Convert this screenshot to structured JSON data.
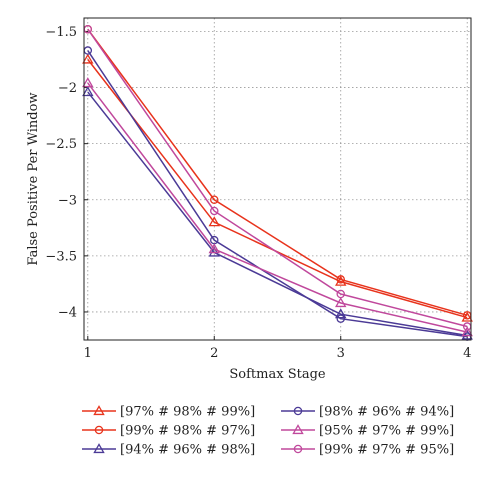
{
  "chart_data": {
    "type": "line",
    "title": "",
    "xlabel": "Softmax Stage",
    "ylabel": "False Positive Per Window",
    "x": [
      1,
      2,
      3,
      4
    ],
    "xlim": [
      0.97,
      4.03
    ],
    "ylim": [
      -4.25,
      -1.38
    ],
    "xticks": [
      1,
      2,
      3,
      4
    ],
    "yticks": [
      -4,
      -3.5,
      -3,
      -2.5,
      -2,
      -1.5
    ],
    "grid": true,
    "legend_position": "below",
    "series": [
      {
        "name": "[97% # 98% # 99%]",
        "values": [
          -1.75,
          -3.2,
          -3.73,
          -4.05
        ],
        "color": "#e8331c",
        "marker": "triangle"
      },
      {
        "name": "[99% # 98% # 97%]",
        "values": [
          -1.48,
          -3.0,
          -3.71,
          -4.03
        ],
        "color": "#e8331c",
        "marker": "circle"
      },
      {
        "name": "[94% # 96% # 98%]",
        "values": [
          -2.04,
          -3.47,
          -4.02,
          -4.21
        ],
        "color": "#4b3a96",
        "marker": "triangle"
      },
      {
        "name": "[98% # 96% # 94%]",
        "values": [
          -1.67,
          -3.36,
          -4.06,
          -4.22
        ],
        "color": "#4b3a96",
        "marker": "circle"
      },
      {
        "name": "[95% # 97% # 99%]",
        "values": [
          -1.96,
          -3.44,
          -3.92,
          -4.18
        ],
        "color": "#c0489c",
        "marker": "triangle"
      },
      {
        "name": "[99% # 97% # 95%]",
        "values": [
          -1.48,
          -3.1,
          -3.84,
          -4.13
        ],
        "color": "#c0489c",
        "marker": "circle"
      }
    ]
  }
}
